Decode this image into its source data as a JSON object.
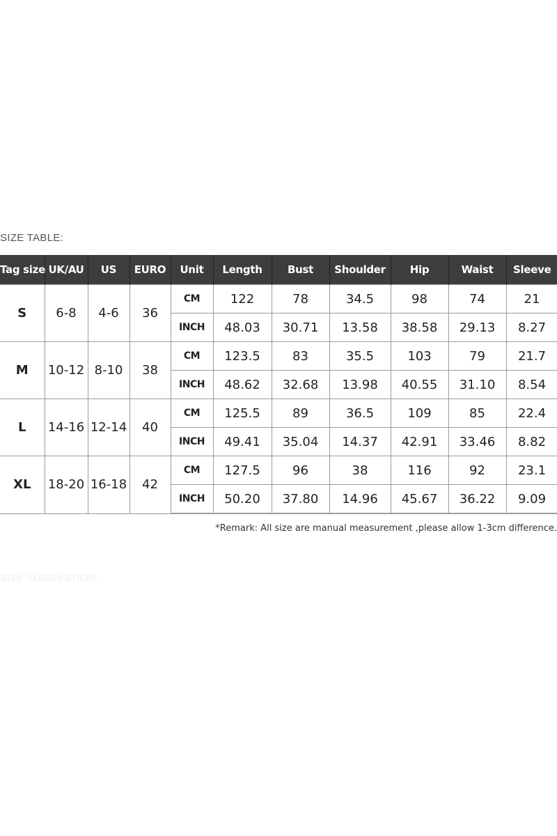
{
  "section_title": "SIZE TABLE:",
  "suggestion_title": "SIZE SUGGESTION:",
  "table": {
    "headers": [
      "Tag size",
      "UK/AU",
      "US",
      "EURO",
      "Unit",
      "Length",
      "Bust",
      "Shoulder",
      "Hip",
      "Waist",
      "Sleeve"
    ],
    "sizes": [
      {
        "tag": "S",
        "uk_au": "6-8",
        "us": "4-6",
        "euro": "36",
        "cm": {
          "unit": "CM",
          "values": [
            "122",
            "78",
            "34.5",
            "98",
            "74",
            "21"
          ]
        },
        "inch": {
          "unit": "INCH",
          "values": [
            "48.03",
            "30.71",
            "13.58",
            "38.58",
            "29.13",
            "8.27"
          ]
        }
      },
      {
        "tag": "M",
        "uk_au": "10-12",
        "us": "8-10",
        "euro": "38",
        "cm": {
          "unit": "CM",
          "values": [
            "123.5",
            "83",
            "35.5",
            "103",
            "79",
            "21.7"
          ]
        },
        "inch": {
          "unit": "INCH",
          "values": [
            "48.62",
            "32.68",
            "13.98",
            "40.55",
            "31.10",
            "8.54"
          ]
        }
      },
      {
        "tag": "L",
        "uk_au": "14-16",
        "us": "12-14",
        "euro": "40",
        "cm": {
          "unit": "CM",
          "values": [
            "125.5",
            "89",
            "36.5",
            "109",
            "85",
            "22.4"
          ]
        },
        "inch": {
          "unit": "INCH",
          "values": [
            "49.41",
            "35.04",
            "14.37",
            "42.91",
            "33.46",
            "8.82"
          ]
        }
      },
      {
        "tag": "XL",
        "uk_au": "18-20",
        "us": "16-18",
        "euro": "42",
        "cm": {
          "unit": "CM",
          "values": [
            "127.5",
            "96",
            "38",
            "116",
            "92",
            "23.1"
          ]
        },
        "inch": {
          "unit": "INCH",
          "values": [
            "50.20",
            "37.80",
            "14.96",
            "45.67",
            "36.22",
            "9.09"
          ]
        }
      }
    ]
  },
  "remark": "*Remark: All size are manual measurement ,please allow 1-3cm difference.",
  "colors": {
    "header_bg": "#3d3d3d",
    "header_text": "#ffffff",
    "grid": "#9a9a9a"
  }
}
